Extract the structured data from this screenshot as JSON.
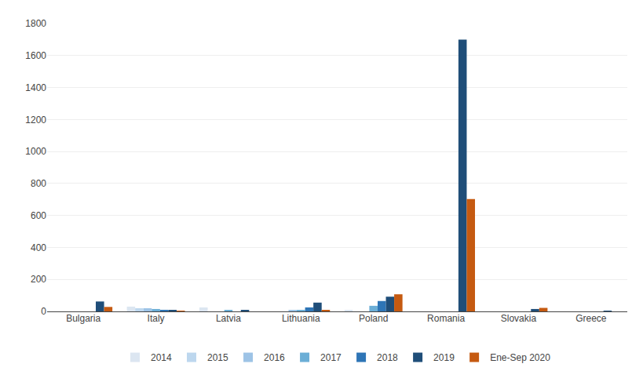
{
  "chart_data": {
    "type": "bar",
    "categories": [
      "Bulgaria",
      "Italy",
      "Latvia",
      "Lithuania",
      "Poland",
      "Romania",
      "Slovakia",
      "Greece"
    ],
    "series": [
      {
        "name": "2014",
        "color": "#dce6f1",
        "values": [
          0,
          30,
          25,
          0,
          5,
          0,
          0,
          0
        ]
      },
      {
        "name": "2015",
        "color": "#bdd7ee",
        "values": [
          0,
          20,
          0,
          0,
          0,
          0,
          0,
          0
        ]
      },
      {
        "name": "2016",
        "color": "#9dc3e6",
        "values": [
          0,
          20,
          0,
          5,
          0,
          0,
          0,
          0
        ]
      },
      {
        "name": "2017",
        "color": "#6baed6",
        "values": [
          0,
          15,
          5,
          5,
          35,
          0,
          0,
          0
        ]
      },
      {
        "name": "2018",
        "color": "#2e75b6",
        "values": [
          0,
          10,
          0,
          25,
          65,
          0,
          0,
          0
        ]
      },
      {
        "name": "2019",
        "color": "#1f4e79",
        "values": [
          62,
          8,
          5,
          55,
          92,
          1700,
          15,
          3
        ]
      },
      {
        "name": "Ene-Sep 2020",
        "color": "#c55a11",
        "values": [
          28,
          3,
          0,
          5,
          107,
          703,
          22,
          0
        ]
      }
    ],
    "ylim": [
      0,
      1800
    ],
    "yticks": [
      0,
      200,
      400,
      600,
      800,
      1000,
      1200,
      1400,
      1600,
      1800
    ],
    "grid": true,
    "legend": "bottom"
  }
}
